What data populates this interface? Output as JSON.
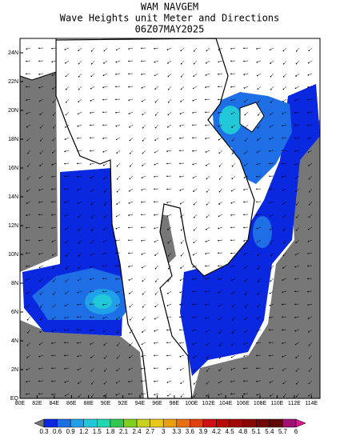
{
  "title": [
    "WAM NAVGEM",
    "Wave Heights unit Meter and Directions",
    "06Z07MAY2025"
  ],
  "map": {
    "xlim": [
      80,
      115
    ],
    "ylim": [
      0,
      25
    ],
    "xticks": [
      {
        "value": 80,
        "label": "80E"
      },
      {
        "value": 82,
        "label": "82E"
      },
      {
        "value": 84,
        "label": "84E"
      },
      {
        "value": 86,
        "label": "86E"
      },
      {
        "value": 88,
        "label": "88E"
      },
      {
        "value": 90,
        "label": "90E"
      },
      {
        "value": 92,
        "label": "92E"
      },
      {
        "value": 94,
        "label": "94E"
      },
      {
        "value": 96,
        "label": "96E"
      },
      {
        "value": 98,
        "label": "98E"
      },
      {
        "value": 100,
        "label": "100E"
      },
      {
        "value": 102,
        "label": "102E"
      },
      {
        "value": 104,
        "label": "104E"
      },
      {
        "value": 106,
        "label": "106E"
      },
      {
        "value": 108,
        "label": "108E"
      },
      {
        "value": 110,
        "label": "110E"
      },
      {
        "value": 112,
        "label": "112E"
      },
      {
        "value": 114,
        "label": "114E"
      }
    ],
    "yticks": [
      {
        "value": 0,
        "label": "EQ"
      },
      {
        "value": 2,
        "label": "2N"
      },
      {
        "value": 4,
        "label": "4N"
      },
      {
        "value": 6,
        "label": "6N"
      },
      {
        "value": 8,
        "label": "8N"
      },
      {
        "value": 10,
        "label": "10N"
      },
      {
        "value": 12,
        "label": "12N"
      },
      {
        "value": 14,
        "label": "14N"
      },
      {
        "value": 16,
        "label": "16N"
      },
      {
        "value": 18,
        "label": "18N"
      },
      {
        "value": 20,
        "label": "20N"
      },
      {
        "value": 22,
        "label": "22N"
      },
      {
        "value": 24,
        "label": "24N"
      }
    ]
  },
  "colorbar": {
    "ticks": [
      0.3,
      0.6,
      0.9,
      1.2,
      1.5,
      1.8,
      2.1,
      2.4,
      2.7,
      3,
      3.3,
      3.6,
      3.9,
      4.2,
      4.5,
      4.8,
      5.1,
      5.4,
      5.7,
      6
    ],
    "colors": [
      "#777777",
      "#0a28e0",
      "#1e6ee6",
      "#1fa0e8",
      "#20c8d8",
      "#20d8b0",
      "#30c850",
      "#80d020",
      "#c8d020",
      "#e8c818",
      "#e8a010",
      "#e87010",
      "#e04010",
      "#d01010",
      "#b80808",
      "#a00808",
      "#880808",
      "#700808",
      "#600808",
      "#a01070",
      "#d81890"
    ]
  }
}
